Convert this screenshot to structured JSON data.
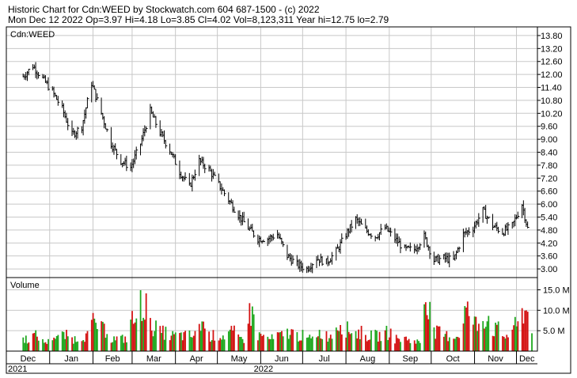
{
  "header": {
    "line1": "Historic Chart for Cdn:WEED by Stockwatch.com 604 687-1500 - (c) 2022",
    "line2": "Mon Dec 12 2022  Op=3.97  Hi=4.18  Lo=3.85  Cl=4.02  Vol=8,123,311  Year hi=12.75  lo=2.79"
  },
  "chart_data": [
    {
      "type": "ohlc",
      "title": "Cdn:WEED",
      "x_start": "2021-12-13",
      "x_end": "2022-12-12",
      "ylim": [
        2.6,
        14.2
      ],
      "y_ticks": [
        "13.80",
        "13.20",
        "12.60",
        "12.00",
        "11.40",
        "10.80",
        "10.20",
        "9.60",
        "9.00",
        "8.40",
        "7.80",
        "7.20",
        "6.60",
        "6.00",
        "5.40",
        "4.80",
        "4.20",
        "3.60",
        "3.00"
      ],
      "x_tick_labels": [
        "Dec",
        "Jan",
        "Feb",
        "Mar",
        "Apr",
        "May",
        "Jun",
        "Jul",
        "Aug",
        "Sep",
        "Oct",
        "Nov",
        "Dec"
      ],
      "x_tick_dates": [
        "2021-12-01",
        "2022-01-01",
        "2022-02-01",
        "2022-03-01",
        "2022-04-01",
        "2022-05-01",
        "2022-06-01",
        "2022-07-01",
        "2022-08-01",
        "2022-09-01",
        "2022-10-01",
        "2022-11-01",
        "2022-12-01"
      ],
      "year_labels": [
        "2021",
        "2022"
      ],
      "grid": true,
      "closes": [
        {
          "date": "2021-12-13",
          "close": 11.9
        },
        {
          "date": "2021-12-20",
          "close": 12.4
        },
        {
          "date": "2021-12-27",
          "close": 11.8
        },
        {
          "date": "2022-01-03",
          "close": 11.2
        },
        {
          "date": "2022-01-10",
          "close": 10.4
        },
        {
          "date": "2022-01-17",
          "close": 9.2
        },
        {
          "date": "2022-01-24",
          "close": 9.6
        },
        {
          "date": "2022-01-31",
          "close": 11.6
        },
        {
          "date": "2022-02-07",
          "close": 10.2
        },
        {
          "date": "2022-02-14",
          "close": 8.8
        },
        {
          "date": "2022-02-21",
          "close": 8.0
        },
        {
          "date": "2022-02-28",
          "close": 7.7
        },
        {
          "date": "2022-03-07",
          "close": 8.8
        },
        {
          "date": "2022-03-14",
          "close": 10.3
        },
        {
          "date": "2022-03-21",
          "close": 9.3
        },
        {
          "date": "2022-03-28",
          "close": 8.5
        },
        {
          "date": "2022-04-04",
          "close": 7.5
        },
        {
          "date": "2022-04-11",
          "close": 6.8
        },
        {
          "date": "2022-04-18",
          "close": 8.0
        },
        {
          "date": "2022-04-25",
          "close": 7.6
        },
        {
          "date": "2022-05-02",
          "close": 6.9
        },
        {
          "date": "2022-05-09",
          "close": 6.2
        },
        {
          "date": "2022-05-16",
          "close": 5.5
        },
        {
          "date": "2022-05-23",
          "close": 4.9
        },
        {
          "date": "2022-05-30",
          "close": 4.4
        },
        {
          "date": "2022-06-06",
          "close": 4.4
        },
        {
          "date": "2022-06-13",
          "close": 4.6
        },
        {
          "date": "2022-06-20",
          "close": 3.6
        },
        {
          "date": "2022-06-27",
          "close": 3.2
        },
        {
          "date": "2022-07-04",
          "close": 3.0
        },
        {
          "date": "2022-07-11",
          "close": 3.5
        },
        {
          "date": "2022-07-18",
          "close": 3.3
        },
        {
          "date": "2022-07-25",
          "close": 3.8
        },
        {
          "date": "2022-08-01",
          "close": 4.6
        },
        {
          "date": "2022-08-08",
          "close": 5.3
        },
        {
          "date": "2022-08-15",
          "close": 4.8
        },
        {
          "date": "2022-08-22",
          "close": 4.5
        },
        {
          "date": "2022-08-29",
          "close": 4.9
        },
        {
          "date": "2022-09-05",
          "close": 4.4
        },
        {
          "date": "2022-09-12",
          "close": 3.9
        },
        {
          "date": "2022-09-19",
          "close": 3.9
        },
        {
          "date": "2022-09-26",
          "close": 4.5
        },
        {
          "date": "2022-10-03",
          "close": 3.4
        },
        {
          "date": "2022-10-10",
          "close": 3.5
        },
        {
          "date": "2022-10-17",
          "close": 3.4
        },
        {
          "date": "2022-10-24",
          "close": 4.6
        },
        {
          "date": "2022-10-31",
          "close": 4.9
        },
        {
          "date": "2022-11-07",
          "close": 5.7
        },
        {
          "date": "2022-11-14",
          "close": 5.0
        },
        {
          "date": "2022-11-21",
          "close": 4.7
        },
        {
          "date": "2022-11-28",
          "close": 5.0
        },
        {
          "date": "2022-12-05",
          "close": 6.0
        },
        {
          "date": "2022-12-12",
          "close": 4.02
        }
      ]
    },
    {
      "type": "bar",
      "title": "Volume",
      "ylim": [
        0,
        18
      ],
      "y_ticks": [
        "15.0 M",
        "10.0 M",
        "5.0 M"
      ],
      "volumes_m": [
        {
          "date": "2021-12-13",
          "vol": 4
        },
        {
          "date": "2021-12-20",
          "vol": 5
        },
        {
          "date": "2021-12-27",
          "vol": 3
        },
        {
          "date": "2022-01-03",
          "vol": 5
        },
        {
          "date": "2022-01-10",
          "vol": 5
        },
        {
          "date": "2022-01-17",
          "vol": 4
        },
        {
          "date": "2022-01-24",
          "vol": 5
        },
        {
          "date": "2022-01-31",
          "vol": 9
        },
        {
          "date": "2022-02-07",
          "vol": 7
        },
        {
          "date": "2022-02-14",
          "vol": 4
        },
        {
          "date": "2022-02-21",
          "vol": 4
        },
        {
          "date": "2022-02-28",
          "vol": 10
        },
        {
          "date": "2022-03-07",
          "vol": 15
        },
        {
          "date": "2022-03-14",
          "vol": 8
        },
        {
          "date": "2022-03-21",
          "vol": 6
        },
        {
          "date": "2022-03-28",
          "vol": 5
        },
        {
          "date": "2022-04-04",
          "vol": 5
        },
        {
          "date": "2022-04-11",
          "vol": 5
        },
        {
          "date": "2022-04-18",
          "vol": 9
        },
        {
          "date": "2022-04-25",
          "vol": 5
        },
        {
          "date": "2022-05-02",
          "vol": 5
        },
        {
          "date": "2022-05-09",
          "vol": 6
        },
        {
          "date": "2022-05-16",
          "vol": 4
        },
        {
          "date": "2022-05-23",
          "vol": 12
        },
        {
          "date": "2022-05-30",
          "vol": 5
        },
        {
          "date": "2022-06-06",
          "vol": 4
        },
        {
          "date": "2022-06-13",
          "vol": 5
        },
        {
          "date": "2022-06-20",
          "vol": 6
        },
        {
          "date": "2022-06-27",
          "vol": 5
        },
        {
          "date": "2022-07-04",
          "vol": 4
        },
        {
          "date": "2022-07-11",
          "vol": 6
        },
        {
          "date": "2022-07-18",
          "vol": 5
        },
        {
          "date": "2022-07-25",
          "vol": 9
        },
        {
          "date": "2022-08-01",
          "vol": 7
        },
        {
          "date": "2022-08-08",
          "vol": 6
        },
        {
          "date": "2022-08-15",
          "vol": 5
        },
        {
          "date": "2022-08-22",
          "vol": 5
        },
        {
          "date": "2022-08-29",
          "vol": 6
        },
        {
          "date": "2022-09-05",
          "vol": 4
        },
        {
          "date": "2022-09-12",
          "vol": 4
        },
        {
          "date": "2022-09-19",
          "vol": 3
        },
        {
          "date": "2022-09-26",
          "vol": 17
        },
        {
          "date": "2022-10-03",
          "vol": 6
        },
        {
          "date": "2022-10-10",
          "vol": 5
        },
        {
          "date": "2022-10-17",
          "vol": 5
        },
        {
          "date": "2022-10-24",
          "vol": 13
        },
        {
          "date": "2022-10-31",
          "vol": 9
        },
        {
          "date": "2022-11-07",
          "vol": 11
        },
        {
          "date": "2022-11-14",
          "vol": 7
        },
        {
          "date": "2022-11-21",
          "vol": 5
        },
        {
          "date": "2022-11-28",
          "vol": 8
        },
        {
          "date": "2022-12-05",
          "vol": 13
        },
        {
          "date": "2022-12-12",
          "vol": 8.1
        }
      ]
    }
  ],
  "colors": {
    "bar_up": "#1fa81f",
    "bar_down": "#d41414",
    "ohlc": "#000000",
    "grid": "#c8c8c8",
    "frame": "#000000"
  }
}
